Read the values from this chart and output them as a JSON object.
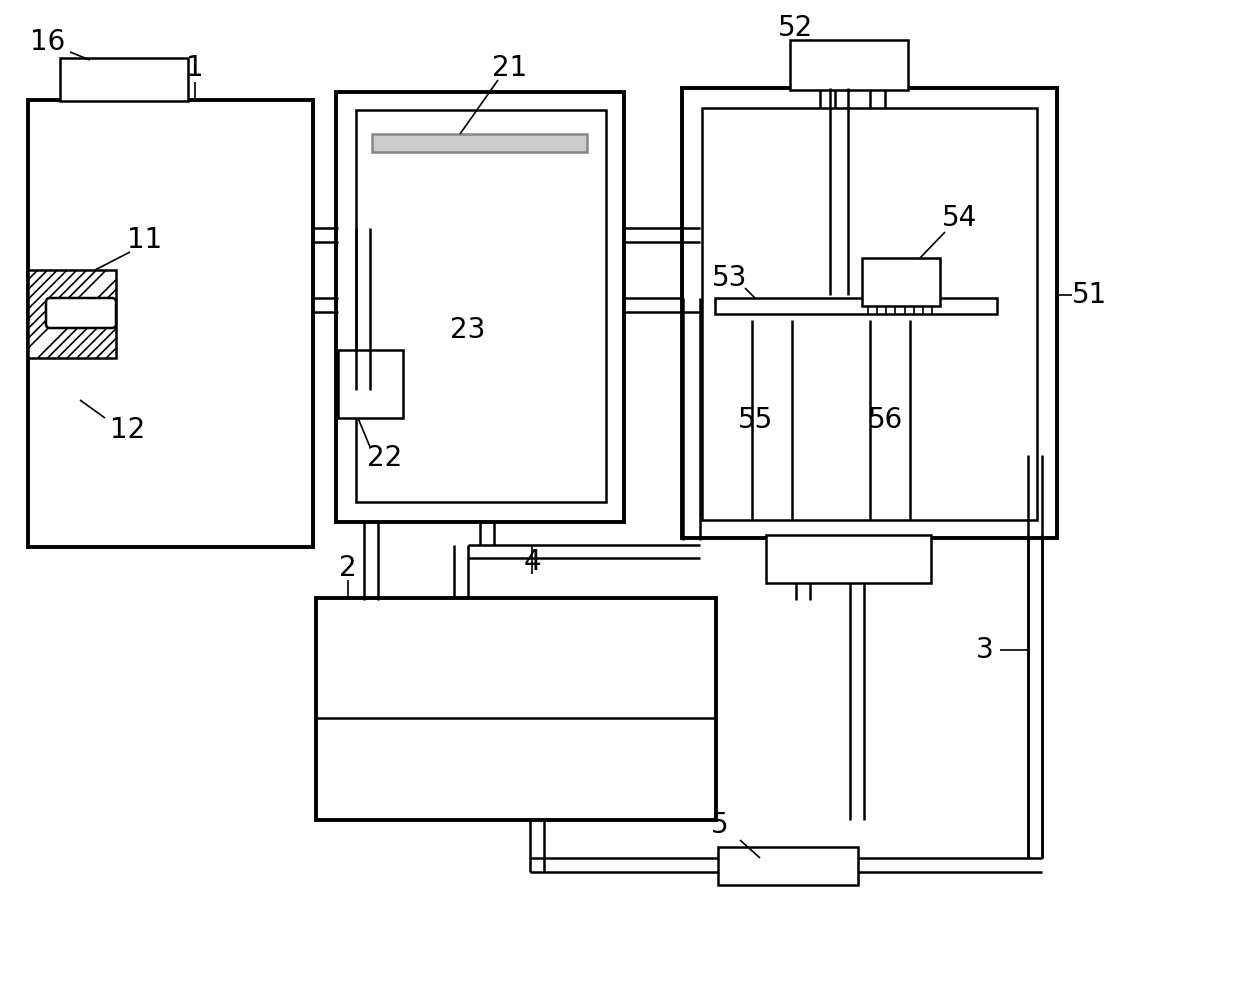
{
  "bg_color": "#ffffff",
  "lc": "#000000",
  "lw": 1.8,
  "lw2": 2.8,
  "lw3": 1.2
}
